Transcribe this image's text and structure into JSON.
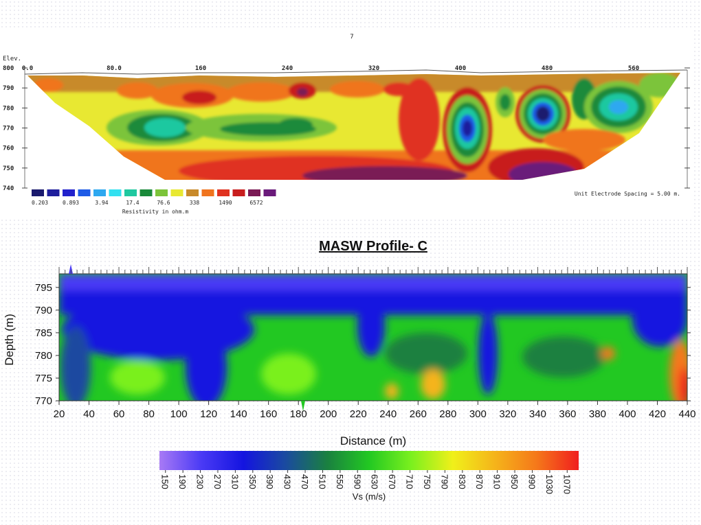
{
  "chart_data": [
    {
      "type": "heatmap",
      "title": "7",
      "ylabel": "Elev.",
      "x_ticks": [
        "0.0",
        "80.0",
        "160",
        "240",
        "320",
        "400",
        "480",
        "560"
      ],
      "y_ticks": [
        "800",
        "790",
        "780",
        "770",
        "760",
        "750",
        "740"
      ],
      "ylim": [
        740,
        800
      ],
      "xlim": [
        0,
        600
      ],
      "legend": {
        "label": "Resistivity in ohm.m",
        "colors": [
          "#1a1a6e",
          "#1e1e9c",
          "#2222cc",
          "#1e5be6",
          "#2ea8f0",
          "#33e0f0",
          "#1fc8a0",
          "#1a8a3a",
          "#7cc43a",
          "#e8e832",
          "#c88a2a",
          "#f0741e",
          "#e03220",
          "#c81e1e",
          "#7a1a55",
          "#6a1a7a"
        ],
        "values": [
          "0.203",
          "0.893",
          "3.94",
          "17.4",
          "76.6",
          "338",
          "1490",
          "6572"
        ]
      },
      "note": "Unit Electrode Spacing = 5.00 m."
    },
    {
      "type": "heatmap",
      "title": "MASW Profile- C",
      "xlabel": "Distance (m)",
      "ylabel": "Depth (m)",
      "x_ticks": [
        20,
        40,
        60,
        80,
        100,
        120,
        140,
        160,
        180,
        200,
        220,
        240,
        260,
        280,
        300,
        320,
        340,
        360,
        380,
        400,
        420,
        440
      ],
      "y_ticks": [
        795,
        790,
        785,
        780,
        775,
        770
      ],
      "xlim": [
        20,
        440
      ],
      "ylim": [
        770,
        798
      ],
      "colorbar": {
        "label": "Vs (m/s)",
        "ticks": [
          150,
          190,
          230,
          270,
          310,
          350,
          390,
          430,
          470,
          510,
          550,
          590,
          630,
          670,
          710,
          750,
          790,
          830,
          870,
          910,
          950,
          990,
          1030,
          1070
        ],
        "colors": [
          "#a87af5",
          "#4a3af5",
          "#1414e0",
          "#1a4aa0",
          "#1a8040",
          "#22c822",
          "#7af01e",
          "#f0f01a",
          "#f5b41a",
          "#f5781a",
          "#f01e1e"
        ]
      }
    }
  ]
}
